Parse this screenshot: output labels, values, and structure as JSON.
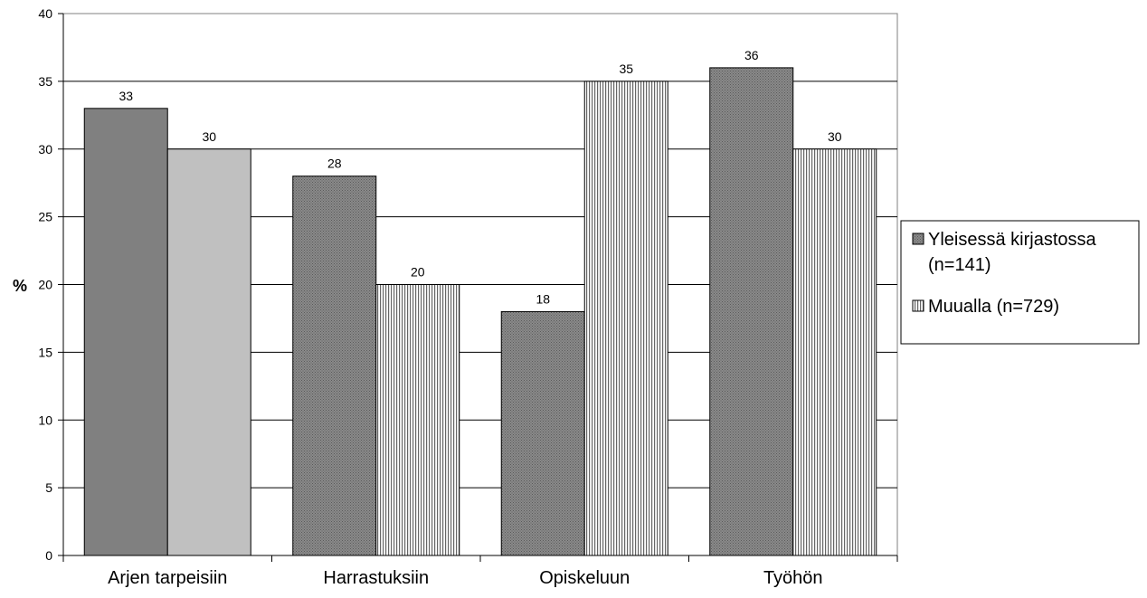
{
  "chart_data": {
    "type": "bar",
    "title": "",
    "xlabel": "",
    "ylabel": "%",
    "ylim": [
      0,
      40
    ],
    "yticks": [
      0,
      5,
      10,
      15,
      20,
      25,
      30,
      35,
      40
    ],
    "grid": true,
    "legend_position": "right",
    "categories": [
      "Arjen tarpeisiin",
      "Harrastuksiin",
      "Opiskeluun",
      "Työhön"
    ],
    "series": [
      {
        "name": "Yleisessä kirjastossa (n=141)",
        "legend_lines": [
          "Yleisessä kirjastossa",
          "(n=141)"
        ],
        "values": [
          33,
          28,
          18,
          36
        ],
        "color": "#808080"
      },
      {
        "name": "Muualla (n=729)",
        "legend_lines": [
          "Muualla (n=729)"
        ],
        "values": [
          30,
          20,
          35,
          30
        ],
        "color": "#c0c0c0"
      }
    ]
  }
}
